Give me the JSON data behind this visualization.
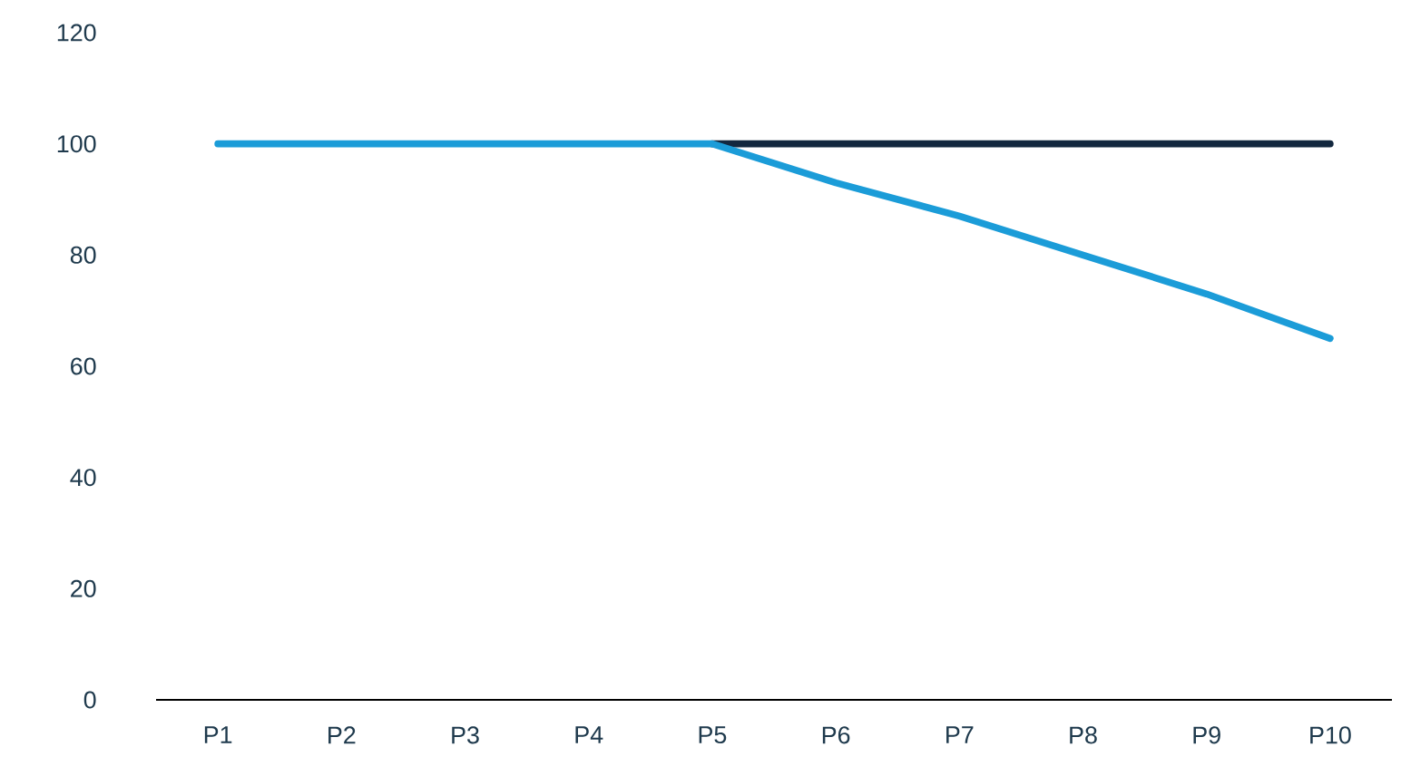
{
  "chart_data": {
    "type": "line",
    "categories": [
      "P1",
      "P2",
      "P3",
      "P4",
      "P5",
      "P6",
      "P7",
      "P8",
      "P9",
      "P10"
    ],
    "series": [
      {
        "color": "#13283f",
        "values": [
          null,
          null,
          null,
          null,
          100,
          100,
          100,
          100,
          100,
          100
        ]
      },
      {
        "color": "#1b9cd8",
        "values": [
          100,
          100,
          100,
          100,
          100,
          93,
          87,
          80,
          73,
          65
        ]
      }
    ],
    "ylim": [
      0,
      120
    ],
    "yticks": [
      0,
      20,
      40,
      60,
      80,
      100,
      120
    ]
  }
}
